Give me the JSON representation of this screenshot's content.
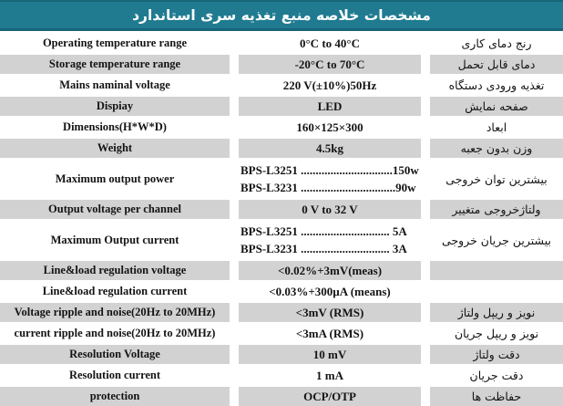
{
  "header": {
    "title": "مشخصات خلاصه منبع تغذیه سری استاندارد"
  },
  "colors": {
    "header_bg": "#207b91",
    "header_edge": "#176579",
    "row_gray": "#d2d2d2",
    "text": "#141414"
  },
  "table": {
    "rows": [
      {
        "en": "Operating temperature range",
        "value": "0°C to 40°C",
        "fa": "رنج دمای کاری",
        "shade": "white"
      },
      {
        "en": "Storage temperature range",
        "value": "-20°C to 70°C",
        "fa": "دمای قابل تحمل",
        "shade": "gray"
      },
      {
        "en": "Mains naminal voltage",
        "value": "220 V(±10%)50Hz",
        "fa": "تغذیه ورودی دستگاه",
        "shade": "white"
      },
      {
        "en": "Dispiay",
        "value": "LED",
        "fa": "صفحه نمایش",
        "shade": "gray"
      },
      {
        "en": "Dimensions(H*W*D)",
        "value": "160×125×300",
        "fa": "ابعاد",
        "shade": "white"
      },
      {
        "en": "Weight",
        "value": "4.5kg",
        "fa": "وزن بدون جعبه",
        "shade": "gray"
      },
      {
        "en": "Maximum output power",
        "value_lines": [
          "BPS-L3251 ...............................150w",
          "BPS-L3231 ................................90w"
        ],
        "fa": "بیشترین توان خروجی",
        "shade": "white"
      },
      {
        "en": "Output voltage per channel",
        "value": "0 V to 32 V",
        "fa": "ولتاژخروجی متغییر",
        "shade": "gray"
      },
      {
        "en": "Maximum Output current",
        "value_lines": [
          "BPS-L3251 .............................. 5A",
          "BPS-L3231 .............................. 3A"
        ],
        "fa": "بیشترین جریان خروجی",
        "shade": "white"
      },
      {
        "en": "Line&load regulation voltage",
        "value": "<0.02%+3mV(meas)",
        "fa": "",
        "shade": "gray"
      },
      {
        "en": "Line&load regulation current",
        "value": "<0.03%+300µA (means)",
        "fa": "",
        "shade": "white"
      },
      {
        "en": "Voltage ripple and noise(20Hz to 20MHz)",
        "value": "<3mV (RMS)",
        "fa": "نویز و ریپل ولتاژ",
        "shade": "gray"
      },
      {
        "en": "current ripple and noise(20Hz to 20MHz)",
        "value": "<3mA (RMS)",
        "fa": "نویز و ریپل جریان",
        "shade": "white"
      },
      {
        "en": "Resolution Voltage",
        "value": "10 mV",
        "fa": "دقت ولتاژ",
        "shade": "gray"
      },
      {
        "en": "Resolution current",
        "value": "1 mA",
        "fa": "دقت جریان",
        "shade": "white"
      },
      {
        "en": "protection",
        "value": "OCP/OTP",
        "fa": "حفاظت ها",
        "shade": "gray"
      }
    ]
  }
}
